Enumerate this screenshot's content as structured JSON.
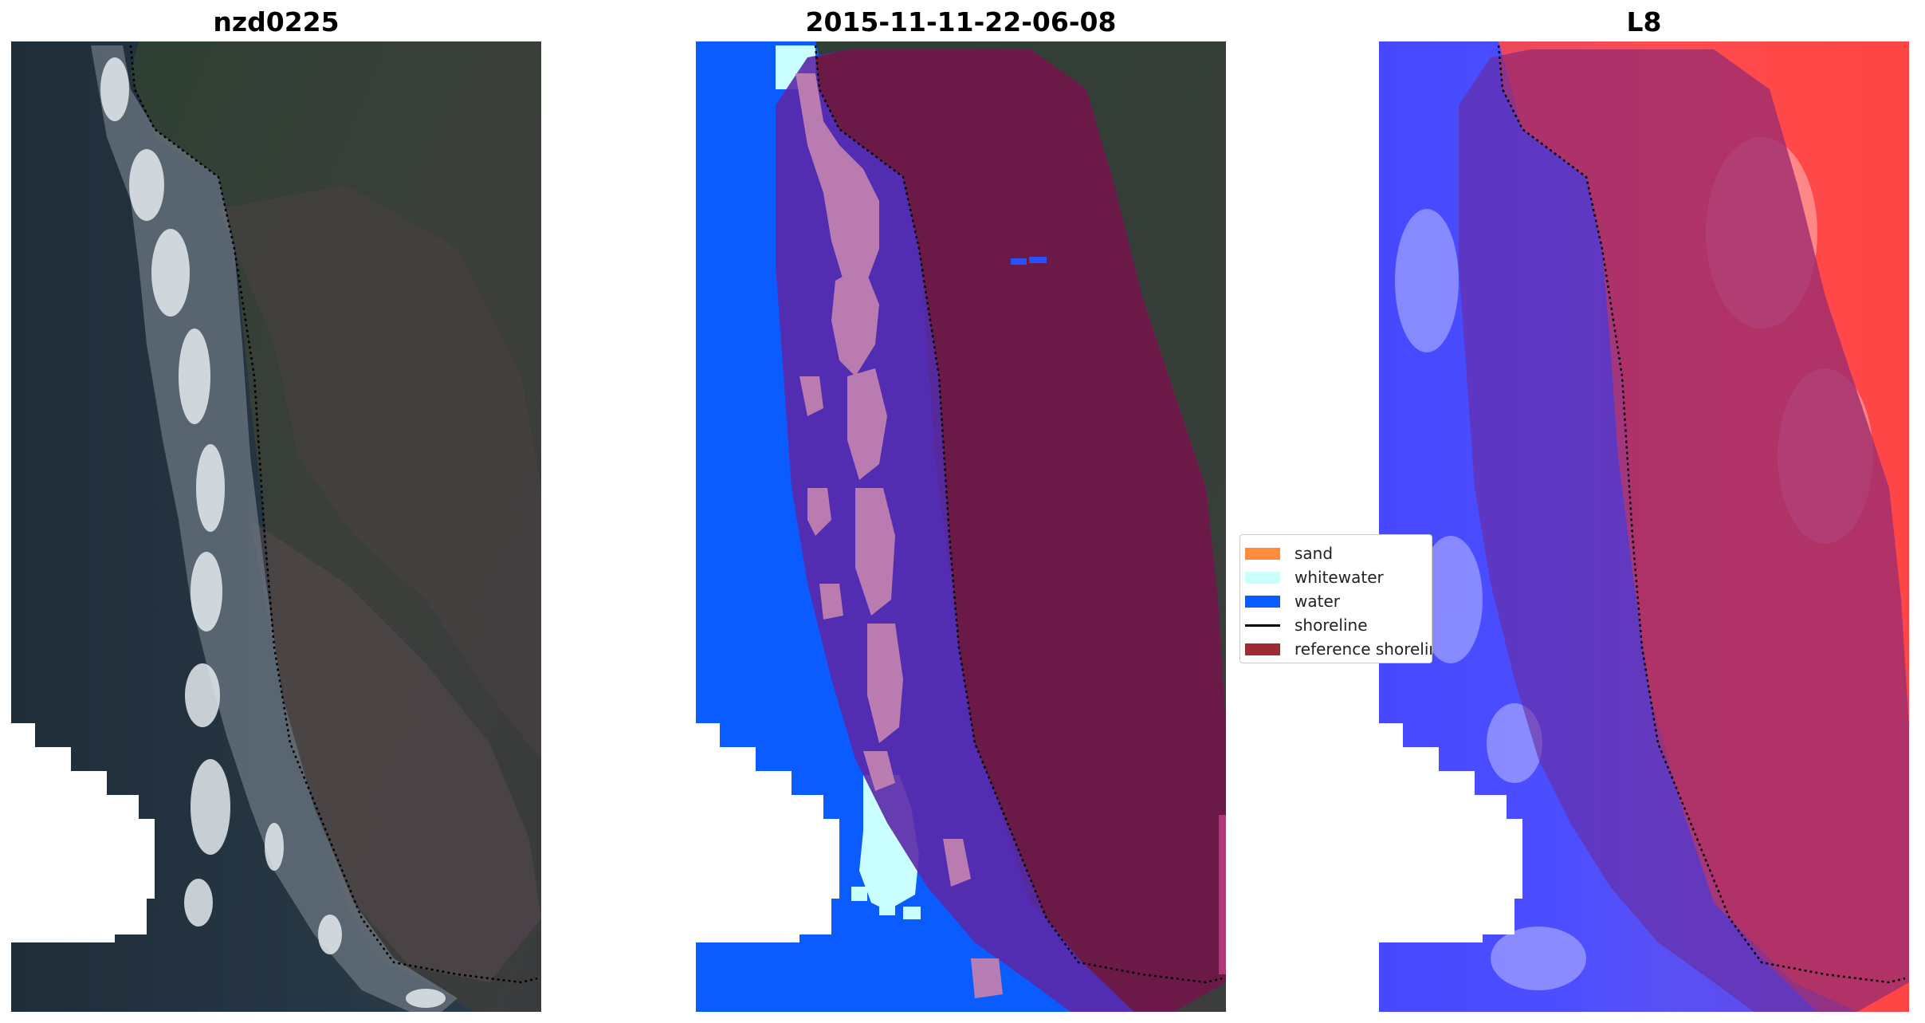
{
  "panels": [
    {
      "title": "nzd0225"
    },
    {
      "title": "2015-11-11-22-06-08"
    },
    {
      "title": "L8"
    }
  ],
  "legend": {
    "items": [
      {
        "label": "sand",
        "color": "#FF8C3A"
      },
      {
        "label": "whitewater",
        "color": "#C9FFFF"
      },
      {
        "label": "water",
        "color": "#0A5CFF"
      },
      {
        "label": "shoreline",
        "color": "#000000"
      },
      {
        "label": "reference shoreline buffer",
        "color": "#9E2B31"
      }
    ]
  },
  "colors": {
    "ocean_dark": "#2a3844",
    "land_dark": "#34433a",
    "surf_white": "#dfe6ea",
    "buffer_overlay": "#7a1540",
    "mndwi_blue": "#2a3cff",
    "mndwi_red": "#ff3030"
  }
}
